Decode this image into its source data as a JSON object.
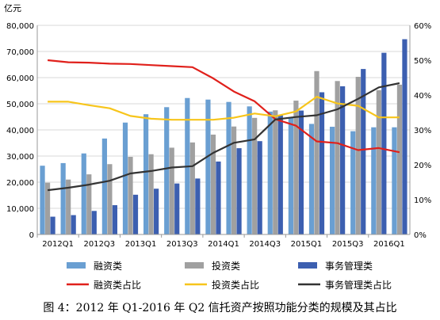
{
  "chart_data": {
    "type": "bar",
    "unit_left": "亿元",
    "categories": [
      "2012Q1",
      "2012Q2",
      "2012Q3",
      "2012Q4",
      "2013Q1",
      "2013Q2",
      "2013Q3",
      "2013Q4",
      "2014Q1",
      "2014Q2",
      "2014Q3",
      "2014Q4",
      "2015Q1",
      "2015Q2",
      "2015Q3",
      "2015Q4",
      "2016Q1",
      "2016Q2"
    ],
    "x_tick_labels": [
      "2012Q1",
      "2012Q3",
      "2013Q1",
      "2013Q3",
      "2014Q1",
      "2014Q3",
      "2015Q1",
      "2015Q3",
      "2016Q1"
    ],
    "left_axis": {
      "min": 0,
      "max": 80000,
      "step": 10000,
      "tick_labels": [
        "0",
        "10,000",
        "20,000",
        "30,000",
        "40,000",
        "50,000",
        "60,000",
        "70,000",
        "80,000"
      ]
    },
    "right_axis": {
      "min": 0,
      "max": 60,
      "step": 10,
      "tick_labels": [
        "0%",
        "10%",
        "20%",
        "30%",
        "40%",
        "50%",
        "60%"
      ]
    },
    "grid": true,
    "legend_position": "bottom",
    "bar_series": [
      {
        "name": "融资类",
        "color": "#6a9fd2",
        "values": [
          26300,
          27300,
          31000,
          36700,
          42800,
          46000,
          48700,
          52200,
          51600,
          50700,
          49000,
          47000,
          44700,
          42300,
          41200,
          39500,
          41000,
          41000
        ]
      },
      {
        "name": "投资类",
        "color": "#a0a0a0",
        "values": [
          19800,
          21000,
          23000,
          26900,
          29700,
          30700,
          33200,
          35200,
          38200,
          41300,
          44600,
          47500,
          51200,
          62500,
          58700,
          60300,
          55200,
          57300
        ]
      },
      {
        "name": "事务管理类",
        "color": "#3c5fb0",
        "values": [
          6800,
          7400,
          9000,
          11200,
          15200,
          17500,
          19500,
          21400,
          27900,
          33000,
          35700,
          45600,
          47400,
          54400,
          56700,
          63300,
          69500,
          74700
        ]
      }
    ],
    "line_series": [
      {
        "name": "融资类占比",
        "color": "#e0201b",
        "axis": "right",
        "values": [
          50.0,
          49.4,
          49.3,
          49.0,
          48.9,
          48.6,
          48.3,
          48.0,
          44.8,
          41.0,
          38.2,
          33.1,
          31.2,
          26.7,
          26.2,
          24.2,
          24.8,
          23.6
        ]
      },
      {
        "name": "投资类占比",
        "color": "#f7c51b",
        "axis": "right",
        "values": [
          38.1,
          38.1,
          37.1,
          36.2,
          34.0,
          33.2,
          32.9,
          32.9,
          32.9,
          33.5,
          34.7,
          33.9,
          35.3,
          39.5,
          37.6,
          36.9,
          33.6,
          33.6
        ]
      },
      {
        "name": "事务管理类占比",
        "color": "#333333",
        "axis": "right",
        "values": [
          12.7,
          13.4,
          14.3,
          15.4,
          17.5,
          18.2,
          19.2,
          19.6,
          23.4,
          26.3,
          27.3,
          33.0,
          33.7,
          34.2,
          35.9,
          38.9,
          42.2,
          43.4
        ]
      }
    ]
  },
  "caption": "图 4：2012 年 Q1-2016 年 Q2 信托资产按照功能分类的规模及其占比"
}
